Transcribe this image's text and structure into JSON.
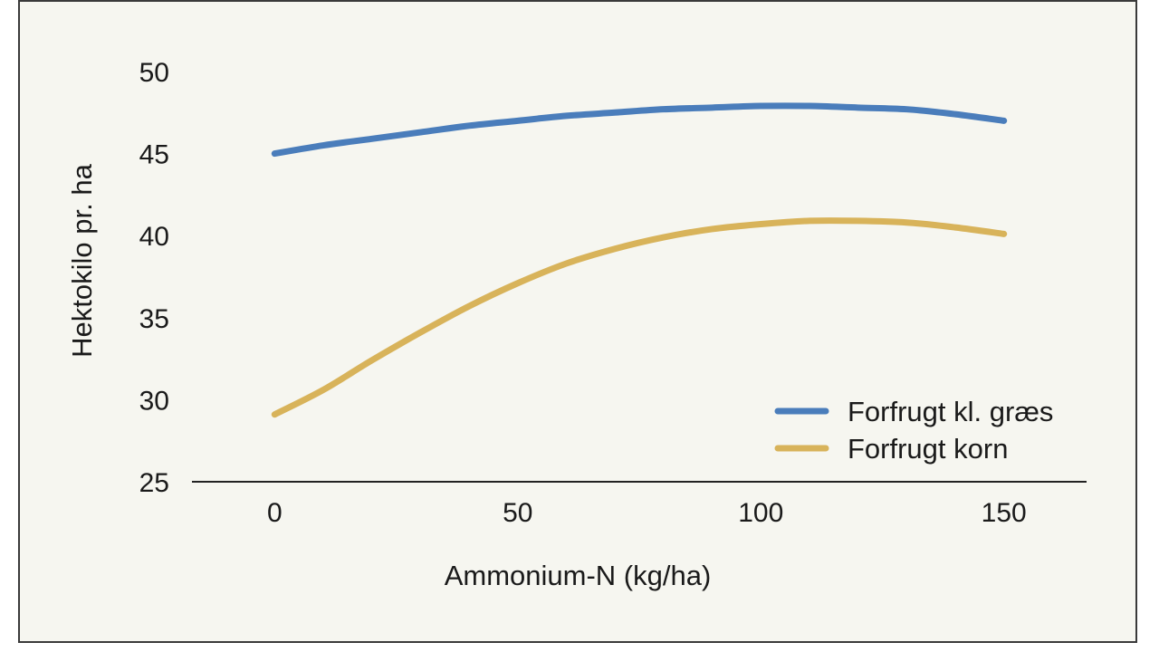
{
  "chart_data": {
    "type": "line",
    "title": "",
    "xlabel": "Ammonium-N (kg/ha)",
    "ylabel": "Hektokilo pr. ha",
    "xlim": [
      -17,
      167
    ],
    "ylim": [
      25,
      50
    ],
    "xticks": [
      0,
      50,
      100,
      150
    ],
    "yticks": [
      25,
      30,
      35,
      40,
      45,
      50
    ],
    "grid": false,
    "legend_position": "bottom-right",
    "x": [
      0,
      10,
      20,
      30,
      40,
      50,
      60,
      70,
      80,
      90,
      100,
      110,
      120,
      130,
      140,
      150
    ],
    "series": [
      {
        "name": "Forfrugt kl. græs",
        "color": "#4a7dbb",
        "values": [
          45.0,
          45.5,
          45.9,
          46.3,
          46.7,
          47.0,
          47.3,
          47.5,
          47.7,
          47.8,
          47.9,
          47.9,
          47.8,
          47.7,
          47.4,
          47.0
        ]
      },
      {
        "name": "Forfrugt korn",
        "color": "#d8b35a",
        "values": [
          29.1,
          30.6,
          32.4,
          34.1,
          35.7,
          37.1,
          38.3,
          39.2,
          39.9,
          40.4,
          40.7,
          40.9,
          40.9,
          40.8,
          40.5,
          40.1
        ]
      }
    ]
  }
}
